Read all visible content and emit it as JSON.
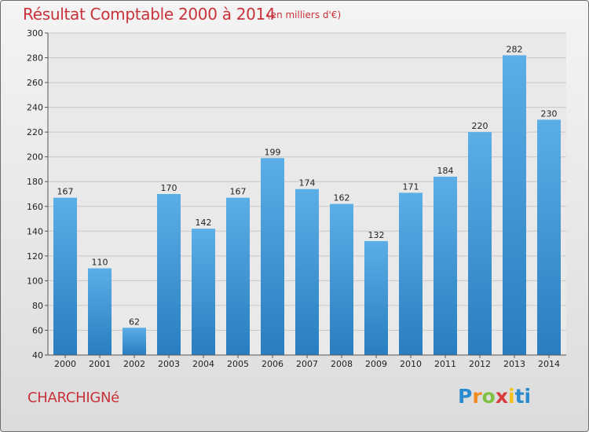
{
  "chart_data": {
    "type": "bar",
    "title": "Résultat Comptable 2000 à 2014",
    "subtitle": "(en milliers d'€)",
    "categories": [
      "2000",
      "2001",
      "2002",
      "2003",
      "2004",
      "2005",
      "2006",
      "2007",
      "2008",
      "2009",
      "2010",
      "2011",
      "2012",
      "2013",
      "2014"
    ],
    "values": [
      167,
      110,
      62,
      170,
      142,
      167,
      199,
      174,
      162,
      132,
      171,
      184,
      220,
      282,
      230
    ],
    "ylim": [
      40,
      300
    ],
    "yticks": [
      40,
      60,
      80,
      100,
      120,
      140,
      160,
      180,
      200,
      220,
      240,
      260,
      280,
      300
    ],
    "xlabel": "",
    "ylabel": "",
    "grid": true,
    "colors": {
      "bar_top": "#5baee6",
      "bar_bottom": "#2a7dbf",
      "grid": "#c8c8c8",
      "accent": "#c8323a"
    }
  },
  "footer": {
    "commune": "CHARCHIGNé",
    "logo_letters": [
      "P",
      "r",
      "o",
      "x",
      "i",
      "ti"
    ]
  }
}
